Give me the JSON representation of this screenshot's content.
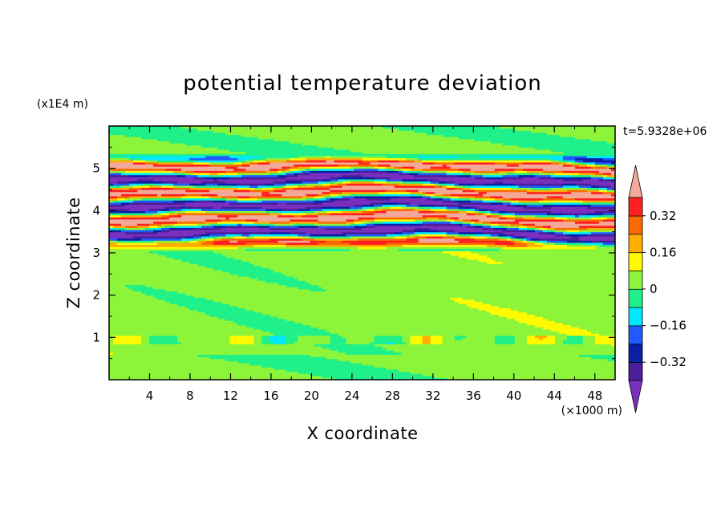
{
  "chart_data": {
    "type": "heatmap",
    "title": "potential temperature deviation",
    "xlabel": "X coordinate",
    "ylabel": "Z coordinate",
    "x_units": "(×1000 m)",
    "y_units": "(x1E4 m)",
    "time_label": "t=5.9328e+06",
    "xlim": [
      0,
      50
    ],
    "ylim": [
      0,
      6
    ],
    "x_ticks": [
      "4",
      "8",
      "12",
      "16",
      "20",
      "24",
      "28",
      "32",
      "36",
      "40",
      "44",
      "48"
    ],
    "y_ticks": [
      "1",
      "2",
      "3",
      "4",
      "5"
    ],
    "colorbar": {
      "levels": [
        -0.4,
        -0.32,
        -0.24,
        -0.16,
        -0.08,
        0,
        0.08,
        0.16,
        0.24,
        0.32,
        0.4
      ],
      "tick_labels": [
        "0.32",
        "0.16",
        "0",
        "−0.16",
        "−0.32"
      ],
      "colors": [
        "#7b2fbf",
        "#4b1f9a",
        "#0a1fa8",
        "#1f5bff",
        "#00e8ff",
        "#1ff08a",
        "#8cf53a",
        "#fffa00",
        "#ffae00",
        "#ff6a00",
        "#ff2020",
        "#f4a89a"
      ],
      "extend": "both"
    },
    "bands": [
      {
        "z_range": [
          0,
          3.0
        ],
        "description": "weak near-zero values (green / light green) with small features near z=1"
      },
      {
        "z_range": [
          3.0,
          5.4
        ],
        "description": "strong alternating layered bands between -0.4 and +0.4"
      },
      {
        "z_range": [
          5.4,
          6.0
        ],
        "description": "near-zero values (green)"
      }
    ]
  }
}
